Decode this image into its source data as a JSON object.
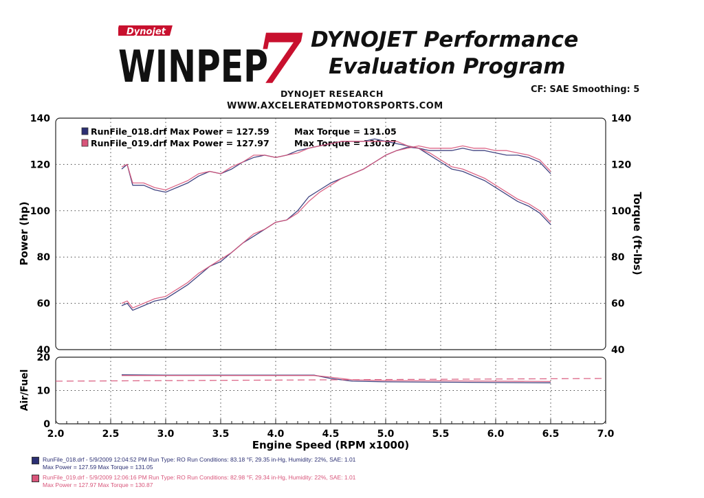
{
  "header": {
    "logo_small": "Dynojet",
    "logo_main": "WINPEP",
    "logo_number": "7",
    "title_line1": "DYNOJET Performance",
    "title_line2": "Evaluation Program",
    "research": "DYNOJET RESEARCH",
    "website": "WWW.AXCELERATEDMOTORSPORTS.COM",
    "correction": "CF: SAE  Smoothing: 5"
  },
  "colors": {
    "run1": "#2b2f73",
    "run2": "#d8557a",
    "grid": "#444444"
  },
  "chart_data": [
    {
      "type": "line",
      "title": "",
      "xlabel": "",
      "ylabel": "Power (hp)",
      "y2label": "Torque (ft-lbs)",
      "xlim": [
        2.0,
        7.0
      ],
      "ylim": [
        40,
        140
      ],
      "y2lim": [
        40,
        140
      ],
      "yticks": [
        40,
        60,
        80,
        100,
        120,
        140
      ],
      "y2ticks": [
        40,
        60,
        80,
        100,
        120,
        140
      ],
      "grid": true,
      "legend": [
        {
          "file": "RunFile_018.drf",
          "power_label": "Max Power = 127.59",
          "torque_label": "Max Torque = 131.05"
        },
        {
          "file": "RunFile_019.drf",
          "power_label": "Max Power = 127.97",
          "torque_label": "Max Torque = 130.87"
        }
      ],
      "series": [
        {
          "name": "RunFile_018.drf Power",
          "axis": "left",
          "x": [
            2.6,
            2.65,
            2.7,
            2.8,
            2.9,
            3.0,
            3.1,
            3.2,
            3.3,
            3.4,
            3.5,
            3.6,
            3.7,
            3.8,
            3.9,
            4.0,
            4.1,
            4.2,
            4.3,
            4.4,
            4.5,
            4.6,
            4.7,
            4.8,
            4.9,
            5.0,
            5.1,
            5.2,
            5.3,
            5.4,
            5.5,
            5.6,
            5.7,
            5.8,
            5.9,
            6.0,
            6.1,
            6.2,
            6.3,
            6.4,
            6.5
          ],
          "y": [
            59,
            60,
            57,
            59,
            61,
            62,
            65,
            68,
            72,
            76,
            78,
            82,
            86,
            89,
            92,
            95,
            96,
            100,
            106,
            109,
            112,
            114,
            116,
            118,
            121,
            124,
            126,
            127.5,
            127,
            126,
            126,
            126,
            127,
            126,
            126,
            125,
            124,
            124,
            123,
            121,
            116
          ]
        },
        {
          "name": "RunFile_019.drf Power",
          "axis": "left",
          "x": [
            2.6,
            2.65,
            2.7,
            2.8,
            2.9,
            3.0,
            3.1,
            3.2,
            3.3,
            3.4,
            3.5,
            3.6,
            3.7,
            3.8,
            3.9,
            4.0,
            4.1,
            4.2,
            4.3,
            4.4,
            4.5,
            4.6,
            4.7,
            4.8,
            4.9,
            5.0,
            5.1,
            5.2,
            5.3,
            5.4,
            5.5,
            5.6,
            5.7,
            5.8,
            5.9,
            6.0,
            6.1,
            6.2,
            6.3,
            6.4,
            6.5
          ],
          "y": [
            60,
            61,
            58,
            60,
            62,
            63,
            66,
            69,
            73,
            76,
            79,
            82,
            86,
            90,
            92,
            95,
            96,
            99,
            104,
            108,
            111,
            114,
            116,
            118,
            121,
            124,
            126,
            127,
            128,
            127,
            127,
            127,
            128,
            127,
            127,
            126,
            126,
            125,
            124,
            122,
            117
          ]
        },
        {
          "name": "RunFile_018.drf Torque",
          "axis": "right",
          "x": [
            2.6,
            2.65,
            2.7,
            2.8,
            2.9,
            3.0,
            3.1,
            3.2,
            3.3,
            3.4,
            3.5,
            3.6,
            3.7,
            3.8,
            3.9,
            4.0,
            4.1,
            4.2,
            4.3,
            4.4,
            4.5,
            4.6,
            4.7,
            4.8,
            4.9,
            5.0,
            5.1,
            5.2,
            5.3,
            5.4,
            5.5,
            5.6,
            5.7,
            5.8,
            5.9,
            6.0,
            6.1,
            6.2,
            6.3,
            6.4,
            6.5
          ],
          "y": [
            118,
            120,
            111,
            111,
            109,
            108,
            110,
            112,
            115,
            117,
            116,
            118,
            121,
            123,
            124,
            123,
            124,
            126,
            127,
            128,
            129,
            130,
            130,
            130,
            131,
            130,
            129,
            128,
            127,
            124,
            121,
            118,
            117,
            115,
            113,
            110,
            107,
            104,
            102,
            99,
            94
          ]
        },
        {
          "name": "RunFile_019.drf Torque",
          "axis": "right",
          "x": [
            2.6,
            2.65,
            2.7,
            2.8,
            2.9,
            3.0,
            3.1,
            3.2,
            3.3,
            3.4,
            3.5,
            3.6,
            3.7,
            3.8,
            3.9,
            4.0,
            4.1,
            4.2,
            4.3,
            4.4,
            4.5,
            4.6,
            4.7,
            4.8,
            4.9,
            5.0,
            5.1,
            5.2,
            5.3,
            5.4,
            5.5,
            5.6,
            5.7,
            5.8,
            5.9,
            6.0,
            6.1,
            6.2,
            6.3,
            6.4,
            6.5
          ],
          "y": [
            119,
            120,
            112,
            112,
            110,
            109,
            111,
            113,
            116,
            117,
            116,
            119,
            121,
            124,
            124,
            123,
            124,
            125,
            127,
            128,
            129,
            130,
            130,
            130,
            130,
            130,
            130,
            128,
            127,
            125,
            122,
            119,
            118,
            116,
            114,
            111,
            108,
            105,
            103,
            100,
            95
          ]
        }
      ]
    },
    {
      "type": "line",
      "title": "",
      "xlabel": "Engine Speed (RPM x1000)",
      "ylabel": "Air/Fuel",
      "xlim": [
        2.0,
        7.0
      ],
      "ylim": [
        0,
        20
      ],
      "yticks": [
        0,
        10,
        20
      ],
      "xticks": [
        "2.0",
        "2.5",
        "3.0",
        "3.5",
        "4.0",
        "4.5",
        "5.0",
        "5.5",
        "6.0",
        "6.5",
        "7.0"
      ],
      "grid": true,
      "series": [
        {
          "name": "RunFile_018.drf Air/Fuel",
          "x": [
            2.6,
            3.0,
            3.5,
            4.0,
            4.35,
            4.5,
            4.7,
            5.0,
            5.5,
            6.0,
            6.5
          ],
          "y": [
            14.7,
            14.6,
            14.6,
            14.6,
            14.6,
            13.6,
            12.8,
            12.6,
            12.5,
            12.4,
            12.3
          ]
        },
        {
          "name": "RunFile_019.drf Air/Fuel",
          "x": [
            2.6,
            3.0,
            3.5,
            4.0,
            4.35,
            4.5,
            4.7,
            5.0,
            5.5,
            6.0,
            6.5
          ],
          "y": [
            14.5,
            14.5,
            14.5,
            14.5,
            14.5,
            14.0,
            13.2,
            13.0,
            12.9,
            12.8,
            12.7
          ]
        },
        {
          "name": "Target",
          "style": "dashed",
          "x": [
            2.0,
            7.0
          ],
          "y": [
            12.8,
            13.6
          ]
        }
      ]
    }
  ],
  "footer": [
    {
      "line1": "RunFile_018.drf - 5/9/2009 12:04:52 PM  Run Type: RO  Run Conditions: 83.18 °F, 29.35 in-Hg,  Humidity:  22%, SAE: 1.01",
      "line2": "Max Power = 127.59   Max Torque = 131.05"
    },
    {
      "line1": "RunFile_019.drf - 5/9/2009 12:06:16 PM  Run Type: RO  Run Conditions: 82.98 °F, 29.34 in-Hg,  Humidity:  22%, SAE: 1.01",
      "line2": "Max Power = 127.97   Max Torque = 130.87"
    }
  ]
}
